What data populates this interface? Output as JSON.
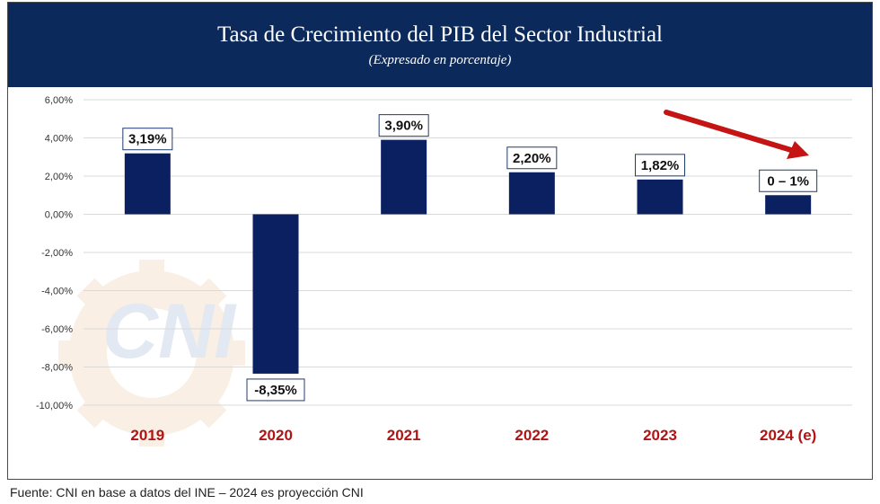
{
  "header": {
    "title": "Tasa de Crecimiento del PIB del Sector Industrial",
    "subtitle": "(Expresado en porcentaje)"
  },
  "source": "Fuente: CNI en base a datos del INE – 2024 es proyección CNI",
  "watermark": {
    "text": "CNI",
    "icon": "gear-icon"
  },
  "colors": {
    "header_bg": "#0b2a5b",
    "bar": "#0b2060",
    "xtick": "#b01515",
    "trend_arrow": "#c41414",
    "grid": "#d9d9d9"
  },
  "chart_data": {
    "type": "bar",
    "categories": [
      "2019",
      "2020",
      "2021",
      "2022",
      "2023",
      "2024 (e)"
    ],
    "values": [
      3.19,
      -8.35,
      3.9,
      2.2,
      1.82,
      1.0
    ],
    "data_labels": [
      "3,19%",
      "-8,35%",
      "3,90%",
      "2,20%",
      "1,82%",
      "0 – 1%"
    ],
    "ylim": [
      -10,
      6
    ],
    "y_ticks": [
      6,
      4,
      2,
      0,
      -2,
      -4,
      -6,
      -8,
      -10
    ],
    "y_tick_labels": [
      "6,00%",
      "4,00%",
      "2,00%",
      "0,00%",
      "-2,00%",
      "-4,00%",
      "-6,00%",
      "-8,00%",
      "-10,00%"
    ],
    "grid": true,
    "annotation": "downward trend arrow over 2023–2024 (e)"
  }
}
